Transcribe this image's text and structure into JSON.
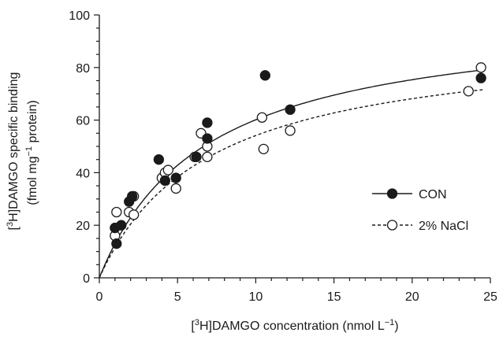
{
  "chart_data": {
    "type": "scatter",
    "xlabel_parts": [
      "[",
      "3",
      "H]DAMGO concentration (nmol L",
      "−1",
      ")"
    ],
    "ylabel_line1_parts": [
      "[",
      "3",
      "H]DAMGO specific binding"
    ],
    "ylabel_line2_parts": [
      "(fmol mg",
      "−1",
      " protein)"
    ],
    "xlim": [
      0,
      25
    ],
    "ylim": [
      0,
      100
    ],
    "x_ticks": [
      0,
      5,
      10,
      15,
      20,
      25
    ],
    "y_ticks": [
      0,
      20,
      40,
      60,
      80,
      100
    ],
    "grid": false,
    "legend_position": "right",
    "series": [
      {
        "name": "CON",
        "marker": "filled-circle",
        "line_style": "solid",
        "fit": {
          "model": "hyperbola",
          "bmax": 101,
          "kd": 6.8
        },
        "points": [
          {
            "x": 1.0,
            "y": 19
          },
          {
            "x": 1.1,
            "y": 13
          },
          {
            "x": 1.4,
            "y": 20
          },
          {
            "x": 1.9,
            "y": 29
          },
          {
            "x": 2.1,
            "y": 31
          },
          {
            "x": 3.8,
            "y": 45
          },
          {
            "x": 4.2,
            "y": 37
          },
          {
            "x": 4.9,
            "y": 38
          },
          {
            "x": 6.2,
            "y": 46
          },
          {
            "x": 6.9,
            "y": 53
          },
          {
            "x": 6.9,
            "y": 59
          },
          {
            "x": 10.6,
            "y": 77
          },
          {
            "x": 12.2,
            "y": 64
          },
          {
            "x": 24.4,
            "y": 76
          }
        ]
      },
      {
        "name": "2% NaCl",
        "marker": "open-circle",
        "line_style": "dashed",
        "fit": {
          "model": "hyperbola",
          "bmax": 92,
          "kd": 7.0
        },
        "points": [
          {
            "x": 1.0,
            "y": 16
          },
          {
            "x": 1.1,
            "y": 25
          },
          {
            "x": 1.9,
            "y": 25
          },
          {
            "x": 2.2,
            "y": 24
          },
          {
            "x": 2.2,
            "y": 31
          },
          {
            "x": 4.0,
            "y": 38
          },
          {
            "x": 4.2,
            "y": 40
          },
          {
            "x": 4.4,
            "y": 41
          },
          {
            "x": 4.9,
            "y": 34
          },
          {
            "x": 6.1,
            "y": 46
          },
          {
            "x": 6.5,
            "y": 55
          },
          {
            "x": 6.9,
            "y": 46
          },
          {
            "x": 6.9,
            "y": 50
          },
          {
            "x": 10.4,
            "y": 61
          },
          {
            "x": 10.5,
            "y": 49
          },
          {
            "x": 12.2,
            "y": 56
          },
          {
            "x": 23.6,
            "y": 71
          },
          {
            "x": 24.4,
            "y": 80
          }
        ]
      }
    ]
  }
}
